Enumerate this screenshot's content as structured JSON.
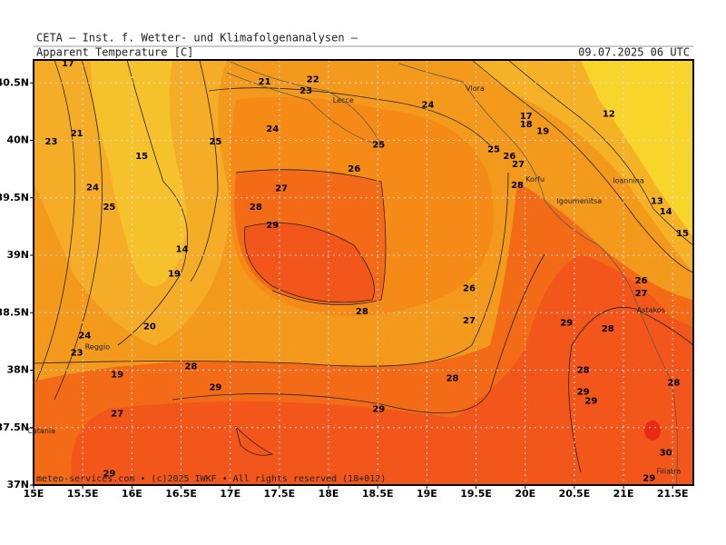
{
  "header": {
    "title": "CETA — Inst. f. Wetter- und Klimafolgenanalysen —",
    "variable": "Apparent Temperature [C]",
    "valid_time": "09.07.2025 06 UTC"
  },
  "footer": "meteo-services.com • (c)2025 IWKF • All rights reserved (18+012)",
  "map": {
    "xlim": [
      15,
      21.71
    ],
    "ylim": [
      37,
      40.7
    ],
    "xticks": [
      {
        "value": 15,
        "label": "15E"
      },
      {
        "value": 15.5,
        "label": "15.5E"
      },
      {
        "value": 16,
        "label": "16E"
      },
      {
        "value": 16.5,
        "label": "16.5E"
      },
      {
        "value": 17,
        "label": "17E"
      },
      {
        "value": 17.5,
        "label": "17.5E"
      },
      {
        "value": 18,
        "label": "18E"
      },
      {
        "value": 18.5,
        "label": "18.5E"
      },
      {
        "value": 19,
        "label": "19E"
      },
      {
        "value": 19.5,
        "label": "19.5E"
      },
      {
        "value": 20,
        "label": "20E"
      },
      {
        "value": 20.5,
        "label": "20.5E"
      },
      {
        "value": 21,
        "label": "21E"
      },
      {
        "value": 21.5,
        "label": "21.5E"
      }
    ],
    "yticks": [
      {
        "value": 37,
        "label": "37N"
      },
      {
        "value": 37.5,
        "label": "37.5N"
      },
      {
        "value": 38,
        "label": "38N"
      },
      {
        "value": 38.5,
        "label": "38.5N"
      },
      {
        "value": 39,
        "label": "39N"
      },
      {
        "value": 39.5,
        "label": "39.5N"
      },
      {
        "value": 40,
        "label": "40N"
      },
      {
        "value": 40.5,
        "label": "40.5N"
      }
    ],
    "grid": true,
    "contour_labels": [
      {
        "value": 17,
        "lon": 15.35,
        "lat": 40.67
      },
      {
        "value": 21,
        "lon": 17.35,
        "lat": 40.51
      },
      {
        "value": 22,
        "lon": 17.84,
        "lat": 40.53
      },
      {
        "value": 23,
        "lon": 17.77,
        "lat": 40.43
      },
      {
        "value": 24,
        "lon": 19.01,
        "lat": 40.31
      },
      {
        "value": 24,
        "lon": 17.43,
        "lat": 40.1
      },
      {
        "value": 25,
        "lon": 16.85,
        "lat": 39.99
      },
      {
        "value": 25,
        "lon": 18.51,
        "lat": 39.96
      },
      {
        "value": 26,
        "lon": 18.26,
        "lat": 39.75
      },
      {
        "value": 23,
        "lon": 15.18,
        "lat": 39.99
      },
      {
        "value": 21,
        "lon": 15.44,
        "lat": 40.06
      },
      {
        "value": 15,
        "lon": 16.1,
        "lat": 39.86
      },
      {
        "value": 24,
        "lon": 15.6,
        "lat": 39.59
      },
      {
        "value": 25,
        "lon": 15.77,
        "lat": 39.42
      },
      {
        "value": 27,
        "lon": 17.52,
        "lat": 39.58
      },
      {
        "value": 28,
        "lon": 17.26,
        "lat": 39.42
      },
      {
        "value": 29,
        "lon": 17.43,
        "lat": 39.26
      },
      {
        "value": 25,
        "lon": 19.68,
        "lat": 39.92
      },
      {
        "value": 26,
        "lon": 19.84,
        "lat": 39.86
      },
      {
        "value": 27,
        "lon": 19.93,
        "lat": 39.79
      },
      {
        "value": 28,
        "lon": 19.92,
        "lat": 39.61
      },
      {
        "value": 17,
        "lon": 20.01,
        "lat": 40.21
      },
      {
        "value": 18,
        "lon": 20.01,
        "lat": 40.14
      },
      {
        "value": 19,
        "lon": 20.18,
        "lat": 40.08
      },
      {
        "value": 12,
        "lon": 20.85,
        "lat": 40.23
      },
      {
        "value": 13,
        "lon": 21.34,
        "lat": 39.47
      },
      {
        "value": 14,
        "lon": 21.43,
        "lat": 39.38
      },
      {
        "value": 15,
        "lon": 21.6,
        "lat": 39.19
      },
      {
        "value": 14,
        "lon": 16.51,
        "lat": 39.05
      },
      {
        "value": 19,
        "lon": 16.43,
        "lat": 38.84
      },
      {
        "value": 26,
        "lon": 19.43,
        "lat": 38.71
      },
      {
        "value": 27,
        "lon": 19.43,
        "lat": 38.43
      },
      {
        "value": 28,
        "lon": 18.34,
        "lat": 38.51
      },
      {
        "value": 20,
        "lon": 16.18,
        "lat": 38.38
      },
      {
        "value": 24,
        "lon": 15.52,
        "lat": 38.3
      },
      {
        "value": 23,
        "lon": 15.44,
        "lat": 38.15
      },
      {
        "value": 28,
        "lon": 16.6,
        "lat": 38.03
      },
      {
        "value": 28,
        "lon": 19.26,
        "lat": 37.93
      },
      {
        "value": 29,
        "lon": 16.85,
        "lat": 37.85
      },
      {
        "value": 29,
        "lon": 18.51,
        "lat": 37.66
      },
      {
        "value": 19,
        "lon": 15.85,
        "lat": 37.96
      },
      {
        "value": 27,
        "lon": 15.85,
        "lat": 37.62
      },
      {
        "value": 29,
        "lon": 15.77,
        "lat": 37.1
      },
      {
        "value": 26,
        "lon": 21.18,
        "lat": 38.78
      },
      {
        "value": 27,
        "lon": 21.18,
        "lat": 38.67
      },
      {
        "value": 29,
        "lon": 20.42,
        "lat": 38.41
      },
      {
        "value": 28,
        "lon": 20.84,
        "lat": 38.36
      },
      {
        "value": 28,
        "lon": 20.59,
        "lat": 38.0
      },
      {
        "value": 29,
        "lon": 20.59,
        "lat": 37.81
      },
      {
        "value": 29,
        "lon": 20.67,
        "lat": 37.73
      },
      {
        "value": 28,
        "lon": 21.51,
        "lat": 37.89
      },
      {
        "value": 30,
        "lon": 21.43,
        "lat": 37.28
      },
      {
        "value": 29,
        "lon": 21.26,
        "lat": 37.06
      }
    ],
    "places": [
      {
        "name": "Lecce",
        "lon": 18.15,
        "lat": 40.35
      },
      {
        "name": "Vlora",
        "lon": 19.49,
        "lat": 40.45
      },
      {
        "name": "Korfu",
        "lon": 20.1,
        "lat": 39.66
      },
      {
        "name": "Igoumenitsa",
        "lon": 20.55,
        "lat": 39.47
      },
      {
        "name": "Ioannina",
        "lon": 21.05,
        "lat": 39.65
      },
      {
        "name": "Astakos",
        "lon": 21.28,
        "lat": 38.52
      },
      {
        "name": "Reggio",
        "lon": 15.65,
        "lat": 38.2
      },
      {
        "name": "Catania",
        "lon": 15.08,
        "lat": 37.47
      },
      {
        "name": "Filiatra",
        "lon": 21.46,
        "lat": 37.12
      }
    ]
  }
}
